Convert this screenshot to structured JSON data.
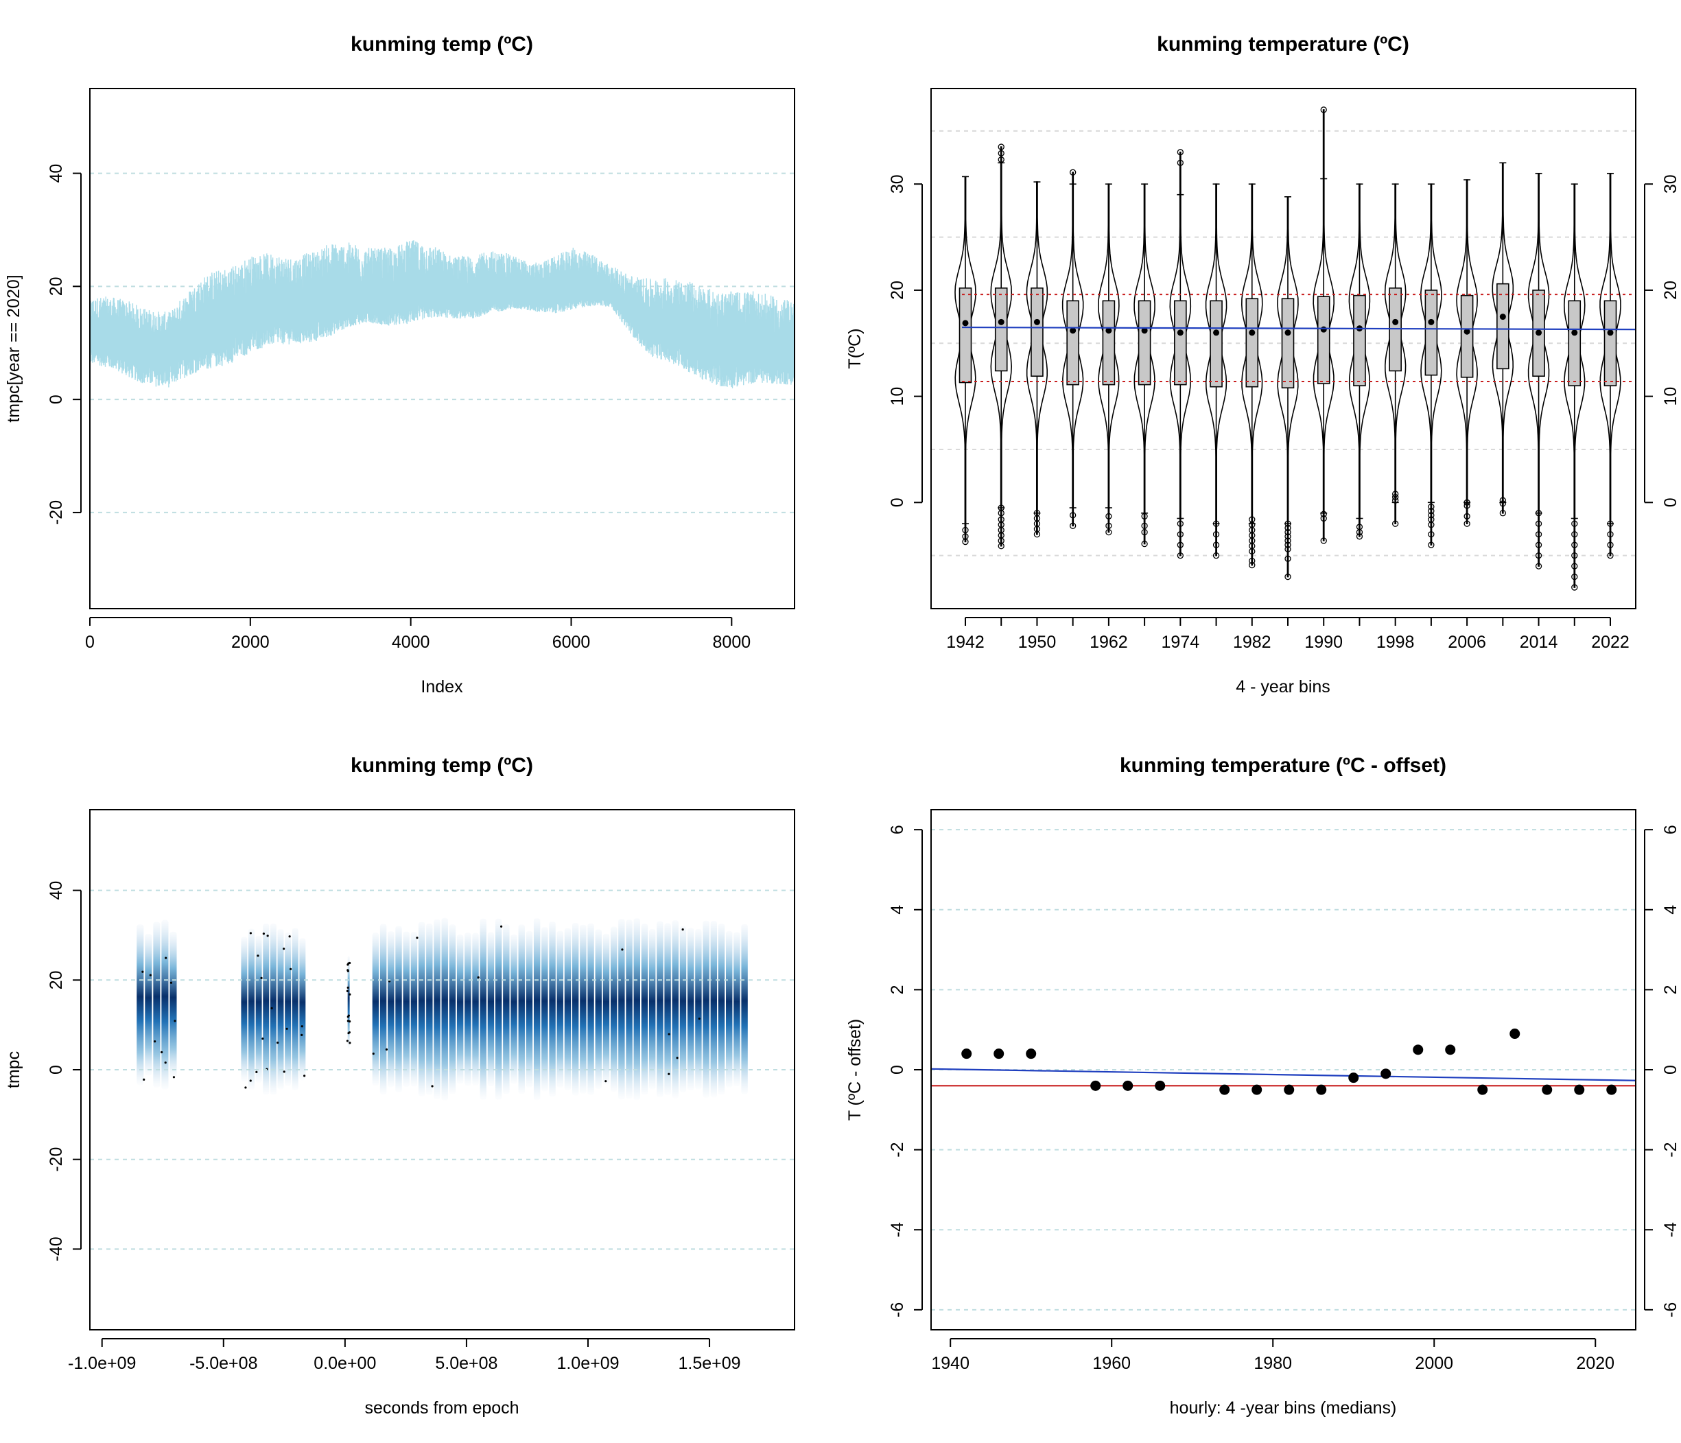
{
  "panels": {
    "top_left": {
      "title": "kunming temp (ºC)",
      "xlabel": "Index",
      "ylabel": "tmpc[year == 2020]",
      "x_ticks": [
        "0",
        "2000",
        "4000",
        "6000",
        "8000"
      ],
      "y_ticks": [
        "-20",
        "0",
        "20",
        "40"
      ]
    },
    "top_right": {
      "title": "kunming temperature (ºC)",
      "xlabel": "4 - year bins",
      "ylabel": "T(ºC)",
      "x_ticks": [
        "1942",
        "1950",
        "1962",
        "1974",
        "1982",
        "1990",
        "1998",
        "2006",
        "2014",
        "2022"
      ],
      "y_ticks": [
        "0",
        "10",
        "20",
        "30"
      ],
      "y_ticks_right": [
        "0",
        "10",
        "20",
        "30"
      ]
    },
    "bottom_left": {
      "title": "kunming temp (ºC)",
      "xlabel": "seconds from epoch",
      "ylabel": "tmpc",
      "x_ticks": [
        "-1.0e+09",
        "-5.0e+08",
        "0.0e+00",
        "5.0e+08",
        "1.0e+09",
        "1.5e+09"
      ],
      "y_ticks": [
        "-40",
        "-20",
        "0",
        "20",
        "40"
      ]
    },
    "bottom_right": {
      "title": "kunming temperature (ºC - offset)",
      "xlabel": "hourly:  4 -year bins (medians)",
      "ylabel": "T (ºC - offset)",
      "x_ticks": [
        "1940",
        "1960",
        "1980",
        "2000",
        "2020"
      ],
      "y_ticks": [
        "-6",
        "-4",
        "-2",
        "0",
        "2",
        "4",
        "6"
      ],
      "y_ticks_right": [
        "-6",
        "-4",
        "-2",
        "0",
        "2",
        "4",
        "6"
      ]
    }
  },
  "colors": {
    "hourly_line": "#a8dbe8",
    "density_dark": "#08306b",
    "density_light": "#c6dbef",
    "trend_blue": "#1f3fbf",
    "ref_red": "#c81e1e",
    "grid": "#bfdde0"
  },
  "chart_data": [
    {
      "type": "line",
      "panel": "top_left",
      "title": "kunming temp (ºC)",
      "xlabel": "Index",
      "ylabel": "tmpc[year == 2020]",
      "xlim": [
        0,
        8784
      ],
      "ylim": [
        -37,
        55
      ],
      "grid_y": [
        -20,
        0,
        20,
        40
      ],
      "series": [
        {
          "name": "hourly tmpc 2020",
          "x": [
            0,
            500,
            1000,
            1500,
            2000,
            2500,
            3000,
            3500,
            4000,
            4500,
            5000,
            5500,
            6000,
            6500,
            7000,
            7500,
            8000,
            8500,
            8784
          ],
          "mid": [
            11,
            9,
            8,
            12,
            15,
            15,
            17,
            17,
            19,
            18,
            19,
            18,
            19,
            18,
            12,
            10,
            9,
            8,
            8
          ],
          "lo": [
            5,
            2,
            0,
            3,
            6,
            8,
            10,
            13,
            13,
            14,
            15,
            15,
            15,
            15,
            6,
            2,
            0,
            1,
            2
          ],
          "hi": [
            18,
            17,
            15,
            22,
            25,
            25,
            28,
            27,
            29,
            26,
            27,
            24,
            27,
            23,
            21,
            20,
            19,
            18,
            18
          ]
        }
      ]
    },
    {
      "type": "violin",
      "panel": "top_right",
      "title": "kunming temperature (ºC)",
      "xlabel": "4 - year bins",
      "ylabel": "T(ºC)",
      "ylim": [
        -10,
        39
      ],
      "grid_y": [
        -5,
        5,
        15,
        25,
        35
      ],
      "bins": [
        1942,
        1946,
        1950,
        1958,
        1962,
        1966,
        1974,
        1978,
        1982,
        1986,
        1990,
        1994,
        1998,
        2002,
        2006,
        2010,
        2014,
        2018,
        2022
      ],
      "tick_bins": [
        1942,
        1950,
        1962,
        1974,
        1982,
        1990,
        1998,
        2006,
        2014,
        2022
      ],
      "q1": [
        11.3,
        12.4,
        11.9,
        11.1,
        11.1,
        11.1,
        11.1,
        10.9,
        10.9,
        10.8,
        11.2,
        11.0,
        12.4,
        12.0,
        11.8,
        12.6,
        11.9,
        11.0,
        11.0
      ],
      "median": [
        16.9,
        17.0,
        17.0,
        16.2,
        16.2,
        16.2,
        16.0,
        16.0,
        16.0,
        16.0,
        16.3,
        16.4,
        17.0,
        17.0,
        16.1,
        17.5,
        16.0,
        16.0,
        16.0
      ],
      "q3": [
        20.2,
        20.2,
        20.2,
        19.0,
        19.0,
        19.0,
        19.0,
        19.0,
        19.2,
        19.2,
        19.4,
        19.5,
        20.2,
        20.0,
        19.5,
        20.6,
        20.0,
        19.0,
        19.0
      ],
      "whisker_lo": [
        -2,
        -0.5,
        -1,
        -0.5,
        -0.5,
        -1,
        -1.5,
        -2,
        -2,
        -2,
        -1,
        -1.5,
        0,
        0,
        0,
        0,
        -1,
        -1.5,
        -2
      ],
      "whisker_hi": [
        30.7,
        32,
        30.2,
        30,
        30,
        30,
        29,
        30,
        30,
        28.8,
        30.5,
        30,
        30,
        30,
        30.4,
        32,
        31,
        30,
        31
      ],
      "outliers_hi": [
        [],
        [
          32.3,
          32.9,
          33.5
        ],
        [],
        [
          31.1
        ],
        [],
        [],
        [
          32,
          33
        ],
        [],
        [],
        [],
        [
          37
        ],
        [],
        [],
        [],
        [],
        [],
        [],
        [],
        []
      ],
      "outliers_lo": [
        [
          -2.6,
          -3.2,
          -3.7
        ],
        [
          -0.5,
          -1,
          -1.6,
          -2.1,
          -2.6,
          -3.1,
          -3.6,
          -4.1
        ],
        [
          -1,
          -1.5,
          -2,
          -2.5,
          -3
        ],
        [
          -1.2,
          -2.2
        ],
        [
          -1.3,
          -2.2,
          -2.8
        ],
        [
          -1.3,
          -2.2,
          -2.8,
          -3.9
        ],
        [
          -2,
          -3,
          -4,
          -5
        ],
        [
          -2,
          -3,
          -4,
          -5
        ],
        [
          -1.6,
          -2.1,
          -2.6,
          -3.1,
          -3.6,
          -4.1,
          -4.6,
          -5.5,
          -5.9
        ],
        [
          -2,
          -2.4,
          -2.8,
          -3.2,
          -3.6,
          -4,
          -4.4,
          -5.3,
          -7
        ],
        [
          -1.1,
          -1.5,
          -3.6
        ],
        [
          -2.3,
          -2.8,
          -3.2
        ],
        [
          0.2,
          0.5,
          0.8,
          -2
        ],
        [
          -0.4,
          -0.8,
          -1.2,
          -1.6,
          -2.1,
          -3,
          -4
        ],
        [
          0,
          -0.3,
          -1.3,
          -2
        ],
        [
          -0.1,
          0.2,
          -1
        ],
        [
          -1,
          -2,
          -3,
          -4,
          -5,
          -6
        ],
        [
          -2,
          -3,
          -4,
          -5,
          -6,
          -7,
          -8
        ],
        [
          -2,
          -3,
          -4,
          -5
        ]
      ],
      "ref_lines": {
        "trend_left": 16.5,
        "trend_right": 16.3,
        "upper_dotted": 19.6,
        "lower_dotted": 11.4
      }
    },
    {
      "type": "heatmap",
      "panel": "bottom_left",
      "title": "kunming temp (ºC)",
      "xlabel": "seconds from epoch",
      "ylabel": "tmpc",
      "xlim": [
        -1050000000.0,
        1850000000.0
      ],
      "ylim": [
        -58,
        58
      ],
      "grid_y": [
        -40,
        -20,
        0,
        20,
        40
      ],
      "segments": [
        {
          "start": -860000000.0,
          "end": -690000000.0,
          "lo": -3,
          "hi": 32
        },
        {
          "start": -430000000.0,
          "end": -160000000.0,
          "lo": -4,
          "hi": 31
        },
        {
          "start": 10000000.0,
          "end": 20000000.0,
          "lo": 5,
          "hi": 25
        },
        {
          "start": 110000000.0,
          "end": 1660000000.0,
          "lo": -5,
          "hi": 32
        }
      ],
      "cycle_seconds": 31500000.0
    },
    {
      "type": "scatter",
      "panel": "bottom_right",
      "title": "kunming temperature (ºC - offset)",
      "xlabel": "hourly:  4 -year bins (medians)",
      "ylabel": "T (ºC - offset)",
      "xlim": [
        1937.6,
        2025
      ],
      "ylim": [
        -6.5,
        6.5
      ],
      "grid_y": [
        -6,
        -4,
        -2,
        0,
        2,
        4,
        6
      ],
      "x": [
        1942,
        1946,
        1950,
        1958,
        1962,
        1966,
        1974,
        1978,
        1982,
        1986,
        1990,
        1994,
        1998,
        2002,
        2006,
        2010,
        2014,
        2018,
        2022
      ],
      "y": [
        0.4,
        0.4,
        0.4,
        -0.4,
        -0.4,
        -0.4,
        -0.5,
        -0.5,
        -0.5,
        -0.5,
        -0.2,
        -0.1,
        0.5,
        0.5,
        -0.5,
        0.9,
        -0.5,
        -0.5,
        -0.5
      ],
      "trend_line": {
        "x": [
          1937.6,
          2025
        ],
        "y": [
          0.02,
          -0.27
        ]
      },
      "median_line": -0.4
    }
  ]
}
